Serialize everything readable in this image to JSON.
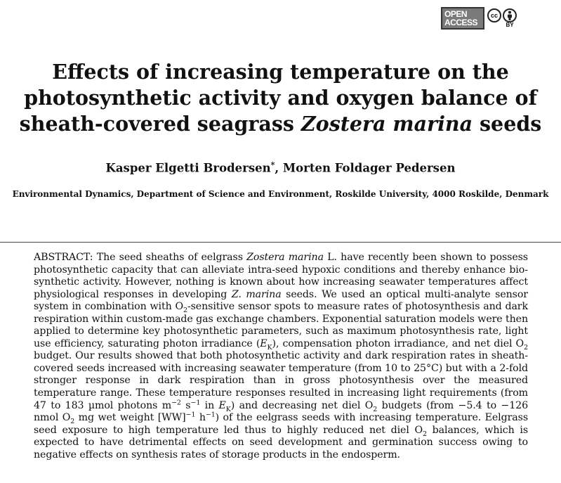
{
  "badge": {
    "open_line1": "OPEN",
    "open_line2": "ACCESS",
    "cc_label": "cc",
    "by_label": "BY"
  },
  "title": {
    "line1": "Effects of increasing temperature on the",
    "line2": "photosynthetic activity and oxygen balance of",
    "line3_before": "sheath-covered seagrass ",
    "line3_italic": "Zostera marina",
    "line3_after": " seeds"
  },
  "authors": {
    "author1": "Kasper Elgetti Brodersen",
    "author1_mark": "*",
    "separator": ", ",
    "author2": "Morten Foldager Pedersen"
  },
  "affiliation": "Environmental Dynamics, Department of Science and Environment, Roskilde University, 4000 Roskilde, Denmark",
  "abstract": {
    "lead": "ABSTRACT:",
    "t1": " The seed sheaths of eelgrass ",
    "i1": "Zostera marina",
    "t2": " L. have recently been shown to possess photosynthetic capacity that can alleviate intra-seed hypoxic conditions and thereby enhance bio­synthetic activity. However, nothing is known about how increasing seawater temperatures affect physiological responses in developing ",
    "i2": "Z. marina",
    "t3": " seeds. We used an optical multi-analyte sensor system in combination with O",
    "s1": "2",
    "t4": "-sensitive sensor spots to measure rates of photosynthesis and dark respiration within custom-made gas exchange chambers. Exponential saturation models were then applied to determine key photosynthetic parameters, such as maximum photosynthesis rate, light use efficiency, saturating photon irradiance (",
    "i3": "E",
    "s2": "K",
    "t5": "), compensation photon irradiance, and net diel O",
    "s3": "2",
    "t6": " budget. Our results showed that both photosynthetic activity and dark respiration rates in sheath-covered seeds increased with increasing seawater temperature (from 10 to 25°C) but with a 2-fold stronger response in dark respiration than in gross photosynthesis over the measured temperature range. These temperature responses resulted in increasing light requirements (from 47 to 183 µmol photons m",
    "p1": "−2",
    "t7": " s",
    "p2": "−1",
    "t8": " in ",
    "i4": "E",
    "s4": "K",
    "t9": ") and decreasing net diel O",
    "s5": "2",
    "t10": " budgets (from −5.4 to −126 nmol O",
    "s6": "2",
    "t11": " mg wet weight [WW]",
    "p3": "−1",
    "t12": " h",
    "p4": "−1",
    "t13": ") of the eelgrass seeds with increasing temperature. Eelgrass seed exposure to high temperature led thus to highly reduced net diel O",
    "s7": "2",
    "t14": " balances, which is expected to have detri­mental effects on seed development and germination success owing to negative effects on synthe­sis rates of storage products in the endosperm."
  }
}
